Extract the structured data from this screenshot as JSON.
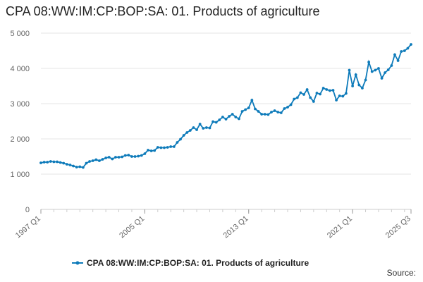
{
  "header": {
    "title": "CPA 08:WW:IM:CP:BOP:SA: 01. Products of agriculture"
  },
  "footer": {
    "source_label": "Source:"
  },
  "colors": {
    "series": "#0e7bba",
    "grid": "#e6e6e6",
    "axis": "#cccccc"
  },
  "chart_data": {
    "type": "line",
    "title": "CPA 08:WW:IM:CP:BOP:SA: 01. Products of agriculture",
    "xlabel": "",
    "ylabel": "",
    "ylim": [
      0,
      5000
    ],
    "yticks": [
      0,
      1000,
      2000,
      3000,
      4000,
      5000
    ],
    "ytick_labels": [
      "0",
      "1 000",
      "2 000",
      "3 000",
      "4 000",
      "5 000"
    ],
    "xtick_labels": [
      {
        "label": "1997 Q1",
        "index": 0
      },
      {
        "label": "2005 Q1",
        "index": 32
      },
      {
        "label": "2013 Q1",
        "index": 64
      },
      {
        "label": "2021 Q1",
        "index": 96
      },
      {
        "label": "2025 Q3",
        "index": 114
      }
    ],
    "x_first": "1997 Q1",
    "x_last": "2025 Q3",
    "grid": true,
    "legend_position": "bottom",
    "series": [
      {
        "name": "CPA 08:WW:IM:CP:BOP:SA: 01. Products of agriculture",
        "values": [
          1320,
          1340,
          1340,
          1360,
          1350,
          1350,
          1330,
          1310,
          1280,
          1260,
          1230,
          1200,
          1210,
          1190,
          1310,
          1360,
          1380,
          1410,
          1380,
          1420,
          1460,
          1480,
          1430,
          1480,
          1480,
          1490,
          1530,
          1540,
          1500,
          1500,
          1510,
          1530,
          1580,
          1680,
          1660,
          1670,
          1760,
          1750,
          1750,
          1760,
          1780,
          1780,
          1900,
          1990,
          2100,
          2180,
          2240,
          2320,
          2260,
          2420,
          2300,
          2320,
          2310,
          2490,
          2470,
          2540,
          2620,
          2560,
          2640,
          2700,
          2620,
          2570,
          2780,
          2830,
          2880,
          3100,
          2850,
          2780,
          2700,
          2700,
          2690,
          2760,
          2800,
          2760,
          2740,
          2860,
          2900,
          2970,
          3130,
          3170,
          3310,
          3260,
          3400,
          3170,
          3060,
          3300,
          3270,
          3440,
          3400,
          3370,
          3380,
          3100,
          3220,
          3210,
          3290,
          3950,
          3500,
          3820,
          3530,
          3440,
          3670,
          4180,
          3910,
          3950,
          4000,
          3720,
          3880,
          3960,
          4080,
          4390,
          4220,
          4480,
          4500,
          4570,
          4680
        ]
      }
    ]
  }
}
